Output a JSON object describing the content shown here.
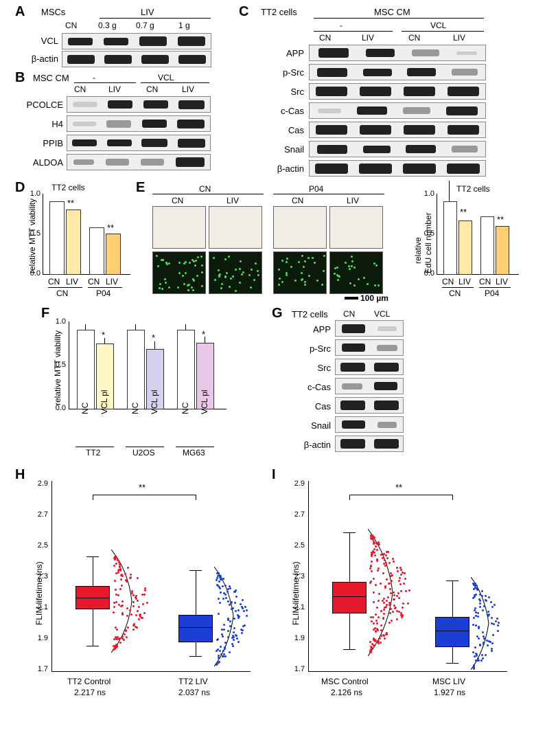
{
  "labels": {
    "A": "A",
    "B": "B",
    "C": "C",
    "D": "D",
    "E": "E",
    "F": "F",
    "G": "G",
    "H": "H",
    "I": "I",
    "MSCs": "MSCs",
    "LIV": "LIV",
    "CN": "CN",
    "g03": "0.3 g",
    "g07": "0.7 g",
    "g1": "1 g",
    "VCL": "VCL",
    "bactin": "β-actin",
    "MSCCM": "MSC CM",
    "dash": "-",
    "PCOLCE": "PCOLCE",
    "H4": "H4",
    "PPIB": "PPIB",
    "ALDOA": "ALDOA",
    "TT2cells": "TT2 cells",
    "APP": "APP",
    "pSrc": "p-Src",
    "Src": "Src",
    "cCas": "c-Cas",
    "Cas": "Cas",
    "Snail": "Snail",
    "relMTT": "relative MTT viability",
    "relEdU": "relative",
    "EdUnum": "EdU cell number",
    "P04": "P04",
    "NC": "NC",
    "VCLpl": "VCL pl",
    "TT2": "TT2",
    "U2OS": "U2OS",
    "MG63": "MG63",
    "scale100": "100 µm",
    "scaleDash": "—",
    "FLIM": "FLIM lifetime (ns)",
    "TT2Control": "TT2 Control",
    "TT2LIV": "TT2 LIV",
    "TT2ControlVal": "2.217 ns",
    "TT2LIVVal": "2.037 ns",
    "MSCControl": "MSC Control",
    "MSCLIV": "MSC LIV",
    "MSCControlVal": "2.126 ns",
    "MSCLIVVal": "1.927 ns",
    "star1": "*",
    "star2": "**",
    "mscCM_header": "MSC CM"
  },
  "panelD": {
    "type": "bar",
    "ylim": [
      0,
      1.1
    ],
    "yticks": [
      0,
      0.5,
      1.0
    ],
    "groups": [
      "CN",
      "LIV",
      "CN",
      "LIV"
    ],
    "outer": [
      "CN",
      "P04"
    ],
    "values": [
      1.0,
      0.89,
      0.64,
      0.56
    ],
    "errs": [
      0.02,
      0.02,
      0.02,
      0.02
    ],
    "colors": [
      "#ffffff",
      "#ffe9a8",
      "#ffffff",
      "#ffcf73"
    ],
    "sig": [
      "",
      "**",
      "",
      "**"
    ],
    "title": "TT2 cells",
    "fontsize": 12
  },
  "panelE_chart": {
    "type": "bar",
    "ylim": [
      0,
      1.35
    ],
    "yticks": [
      0,
      0.5,
      1.0
    ],
    "groups": [
      "CN",
      "LIV",
      "CN",
      "LIV"
    ],
    "outer": [
      "CN",
      "P04"
    ],
    "values": [
      1.0,
      0.74,
      0.79,
      0.66
    ],
    "errs": [
      0.3,
      0.1,
      0.06,
      0.08
    ],
    "colors": [
      "#ffffff",
      "#ffe9a8",
      "#ffffff",
      "#ffcf73"
    ],
    "sig": [
      "",
      "**",
      "",
      "**"
    ],
    "title": "TT2 cells"
  },
  "panelF": {
    "type": "bar",
    "ylim": [
      0,
      1.1
    ],
    "yticks": [
      0,
      0.5,
      1.0
    ],
    "groups": [
      "NC",
      "VCL pl",
      "NC",
      "VCL pl",
      "NC",
      "VCL pl"
    ],
    "outer": [
      "TT2",
      "U2OS",
      "MG63"
    ],
    "values": [
      1.0,
      0.83,
      1.0,
      0.76,
      1.0,
      0.84
    ],
    "errs": [
      0.07,
      0.07,
      0.07,
      0.1,
      0.07,
      0.08
    ],
    "colors": [
      "#ffffff",
      "#fff6c7",
      "#ffffff",
      "#d6d1ef",
      "#ffffff",
      "#e9c7e6"
    ],
    "sig": [
      "",
      "*",
      "",
      "*",
      "",
      "*"
    ]
  },
  "panelH": {
    "type": "boxplot",
    "ylim": [
      1.7,
      2.9
    ],
    "yticks": [
      1.7,
      1.9,
      2.1,
      2.3,
      2.5,
      2.7,
      2.9
    ],
    "cats": [
      "TT2 Control",
      "TT2 LIV"
    ],
    "median": [
      2.16,
      1.98
    ],
    "q1": [
      2.08,
      1.88
    ],
    "q3": [
      2.24,
      2.07
    ],
    "whlo": [
      1.85,
      1.68
    ],
    "whhi": [
      2.42,
      2.32
    ],
    "box_colors": [
      "#e7182b",
      "#1b3fd6"
    ],
    "pt_colors": [
      "#e7182b",
      "#1b3fd6"
    ],
    "sig": "**"
  },
  "panelI": {
    "type": "boxplot",
    "ylim": [
      1.6,
      2.9
    ],
    "yticks": [
      1.7,
      1.9,
      2.1,
      2.3,
      2.5,
      2.7,
      2.9
    ],
    "cats": [
      "MSC Control",
      "MSC LIV"
    ],
    "median": [
      2.14,
      1.93
    ],
    "q1": [
      2.02,
      1.82
    ],
    "q3": [
      2.26,
      2.04
    ],
    "whlo": [
      1.75,
      1.62
    ],
    "whhi": [
      2.58,
      2.27
    ],
    "box_colors": [
      "#e7182b",
      "#1b3fd6"
    ],
    "pt_colors": [
      "#e7182b",
      "#1b3fd6"
    ],
    "sig": "**"
  },
  "edu": {
    "cols": [
      "CN",
      "LIV",
      "CN",
      "LIV"
    ],
    "outer": [
      "CN",
      "P04"
    ],
    "dot_counts": [
      [
        42,
        30,
        28,
        23
      ]
    ]
  }
}
